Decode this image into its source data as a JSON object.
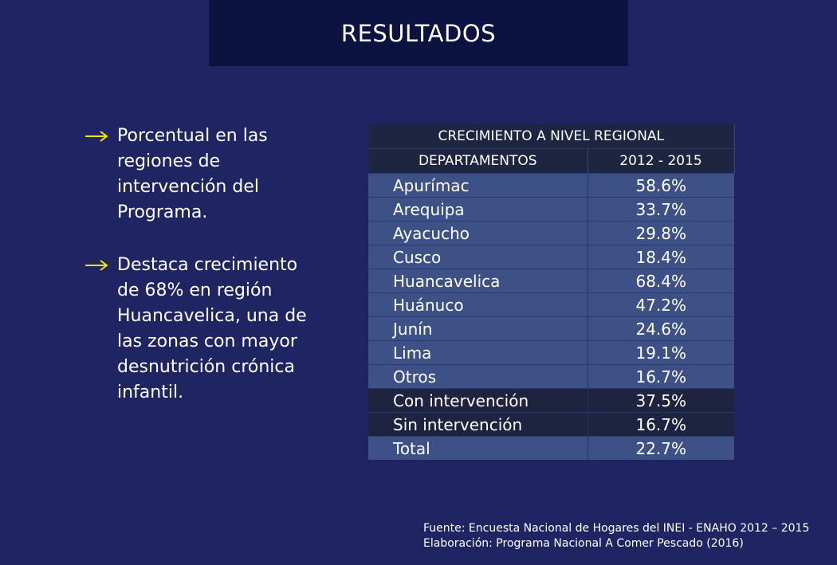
{
  "header": {
    "title": "RESULTADOS"
  },
  "bullets": [
    {
      "icon": "arrow-right-icon",
      "lines": [
        "Porcentual en las",
        "regiones de",
        "intervención del",
        "Programa."
      ]
    },
    {
      "icon": "arrow-right-icon",
      "lines": [
        "Destaca crecimiento",
        "de 68% en región",
        "Huancavelica, una de",
        "las zonas con mayor",
        "desnutrición crónica",
        "infantil."
      ]
    }
  ],
  "table": {
    "title": "CRECIMIENTO A NIVEL REGIONAL",
    "columns": [
      "DEPARTAMENTOS",
      "2012 - 2015"
    ],
    "rows": [
      {
        "label": "Apurímac",
        "value": "58.6%"
      },
      {
        "label": "Arequipa",
        "value": "33.7%"
      },
      {
        "label": "Ayacucho",
        "value": "29.8%"
      },
      {
        "label": "Cusco",
        "value": "18.4%"
      },
      {
        "label": "Huancavelica",
        "value": "68.4%"
      },
      {
        "label": "Huánuco",
        "value": "47.2%"
      },
      {
        "label": "Junín",
        "value": "24.6%"
      },
      {
        "label": "Lima",
        "value": "19.1%"
      },
      {
        "label": "Otros",
        "value": "16.7%"
      },
      {
        "label": "Con intervención",
        "value": "37.5%"
      },
      {
        "label": "Sin intervención",
        "value": "16.7%"
      },
      {
        "label": "Total",
        "value": "22.7%"
      }
    ]
  },
  "source": {
    "line1": "Fuente: Encuesta Nacional de Hogares del INEI - ENAHO 2012 – 2015",
    "line2": "Elaboración: Programa Nacional A Comer Pescado (2016)"
  },
  "colors": {
    "background": "#1f2563",
    "title_bar": "#0c1340",
    "arrow": "#f2e600",
    "table_header": "#1d2540",
    "table_row": "#3d5187"
  }
}
